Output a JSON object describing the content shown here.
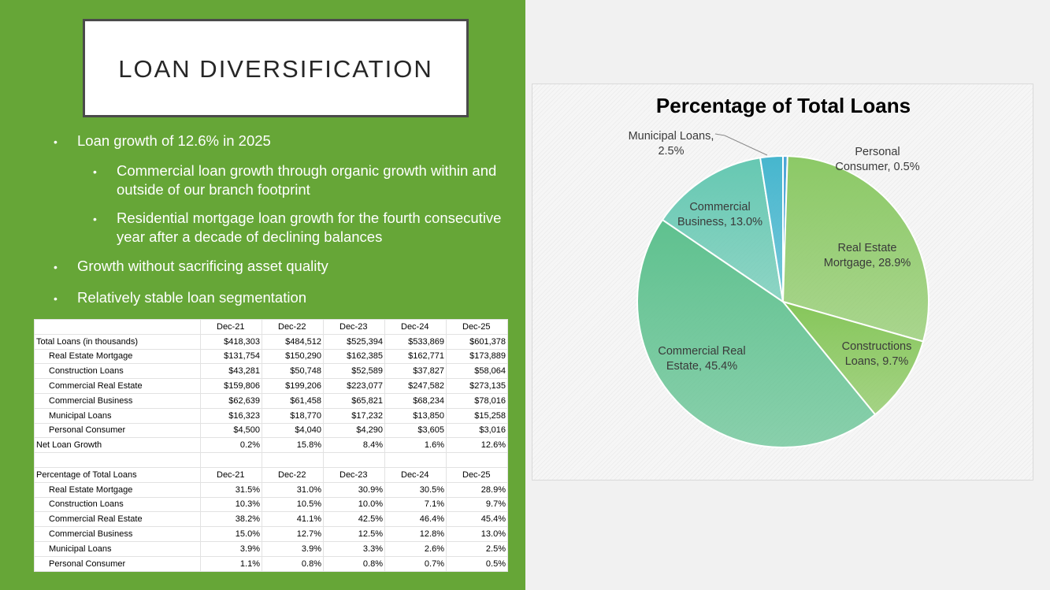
{
  "slide": {
    "title": "LOAN DIVERSIFICATION",
    "bullets": [
      {
        "text": "Loan growth of 12.6% in 2025"
      },
      {
        "text": "Commercial loan growth through organic growth within and outside of our branch footprint"
      },
      {
        "text": "Residential mortgage loan growth for the fourth consecutive year after a decade of declining balances"
      },
      {
        "text": "Growth without sacrificing asset quality"
      },
      {
        "text": "Relatively stable loan segmentation"
      }
    ],
    "bullet_glyph": "•"
  },
  "table": {
    "years": [
      "Dec-21",
      "Dec-22",
      "Dec-23",
      "Dec-24",
      "Dec-25"
    ],
    "rows": [
      {
        "label": "Total Loans (in thousands)",
        "values": [
          "$418,303",
          "$484,512",
          "$525,394",
          "$533,869",
          "$601,378"
        ]
      },
      {
        "label": "Real Estate Mortgage",
        "values": [
          "$131,754",
          "$150,290",
          "$162,385",
          "$162,771",
          "$173,889"
        ]
      },
      {
        "label": "Construction Loans",
        "values": [
          "$43,281",
          "$50,748",
          "$52,589",
          "$37,827",
          "$58,064"
        ]
      },
      {
        "label": "Commercial Real Estate",
        "values": [
          "$159,806",
          "$199,206",
          "$223,077",
          "$247,582",
          "$273,135"
        ]
      },
      {
        "label": "Commercial Business",
        "values": [
          "$62,639",
          "$61,458",
          "$65,821",
          "$68,234",
          "$78,016"
        ]
      },
      {
        "label": "Municipal Loans",
        "values": [
          "$16,323",
          "$18,770",
          "$17,232",
          "$13,850",
          "$15,258"
        ]
      },
      {
        "label": "Personal Consumer",
        "values": [
          "$4,500",
          "$4,040",
          "$4,290",
          "$3,605",
          "$3,016"
        ]
      },
      {
        "label": "Net Loan Growth",
        "values": [
          "0.2%",
          "15.8%",
          "8.4%",
          "1.6%",
          "12.6%"
        ]
      }
    ],
    "pct_header": "Percentage of Total Loans",
    "pct_rows": [
      {
        "label": "Real Estate Mortgage",
        "values": [
          "31.5%",
          "31.0%",
          "30.9%",
          "30.5%",
          "28.9%"
        ]
      },
      {
        "label": "Construction Loans",
        "values": [
          "10.3%",
          "10.5%",
          "10.0%",
          "7.1%",
          "9.7%"
        ]
      },
      {
        "label": "Commercial Real Estate",
        "values": [
          "38.2%",
          "41.1%",
          "42.5%",
          "46.4%",
          "45.4%"
        ]
      },
      {
        "label": "Commercial Business",
        "values": [
          "15.0%",
          "12.7%",
          "12.5%",
          "12.8%",
          "13.0%"
        ]
      },
      {
        "label": "Municipal Loans",
        "values": [
          "3.9%",
          "3.9%",
          "3.3%",
          "2.6%",
          "2.5%"
        ]
      },
      {
        "label": "Personal Consumer",
        "values": [
          "1.1%",
          "0.8%",
          "0.8%",
          "0.7%",
          "0.5%"
        ]
      }
    ]
  },
  "chart_data": {
    "type": "pie",
    "title": "Percentage of Total Loans",
    "slices": [
      {
        "lines": [
          "Personal",
          "Consumer, 0.5%"
        ],
        "value": 0.5,
        "color": "#4aa5d6"
      },
      {
        "lines": [
          "Real Estate",
          "Mortgage, 28.9%"
        ],
        "value": 28.9,
        "color": "#8cc966"
      },
      {
        "lines": [
          "Constructions",
          "Loans, 9.7%"
        ],
        "value": 9.7,
        "color": "#86c65a"
      },
      {
        "lines": [
          "Commercial Real",
          "Estate, 45.4%"
        ],
        "value": 45.4,
        "color": "#5fc18f"
      },
      {
        "lines": [
          "Commercial",
          "Business, 13.0%"
        ],
        "value": 13.0,
        "color": "#66c8b2"
      },
      {
        "lines": [
          "Municipal Loans,",
          "2.5%"
        ],
        "value": 2.5,
        "color": "#46b6ce"
      }
    ]
  }
}
